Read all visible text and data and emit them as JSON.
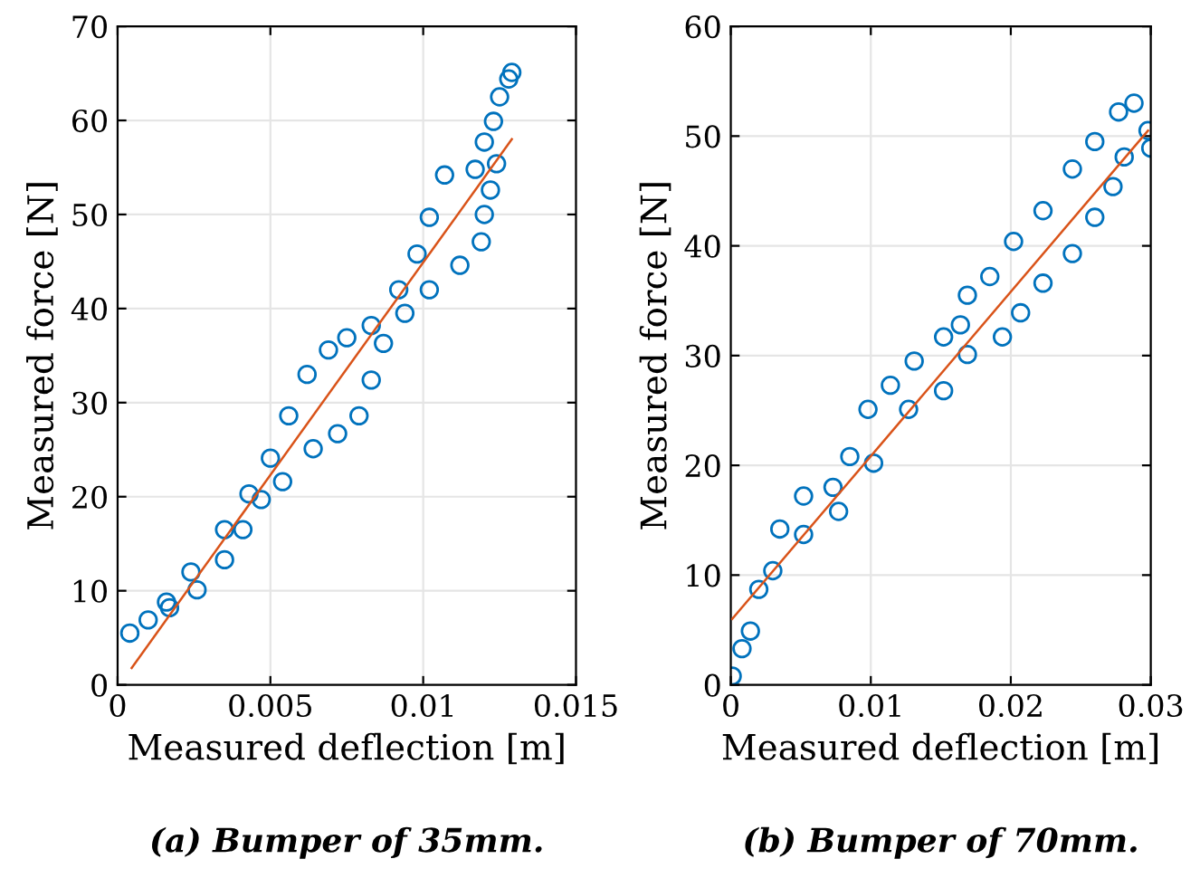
{
  "chart_data": [
    {
      "type": "scatter",
      "xlabel": "Measured deflection [m]",
      "ylabel": "Measured force [N]",
      "annotations": [
        "(a) Bumper of 35mm."
      ],
      "xlim": [
        0,
        0.015
      ],
      "ylim": [
        0,
        70
      ],
      "xticks": [
        0,
        0.005,
        0.01,
        0.015
      ],
      "yticks": [
        0,
        10,
        20,
        30,
        40,
        50,
        60,
        70
      ],
      "grid": true,
      "series": [
        {
          "color": "#0072bd",
          "marker": "circle",
          "x": [
            0.0004,
            0.001,
            0.0016,
            0.0024,
            0.0035,
            0.0043,
            0.005,
            0.0056,
            0.0062,
            0.0069,
            0.0075,
            0.0083,
            0.0092,
            0.0098,
            0.0102,
            0.0107,
            0.0017,
            0.0026,
            0.0035,
            0.0041,
            0.0047,
            0.0054,
            0.0064,
            0.0072,
            0.0079,
            0.0083,
            0.0087,
            0.0094,
            0.0102,
            0.0112,
            0.0119,
            0.012,
            0.0122,
            0.0124,
            0.0117,
            0.012,
            0.0123,
            0.0125,
            0.0128,
            0.0129
          ],
          "values": [
            5.5,
            6.9,
            8.8,
            12,
            16.5,
            20.3,
            24.1,
            28.6,
            33,
            35.6,
            36.9,
            38.2,
            42,
            45.8,
            49.7,
            54.2,
            8.2,
            10.1,
            13.3,
            16.5,
            19.7,
            21.6,
            25.1,
            26.7,
            28.6,
            32.4,
            36.3,
            39.5,
            42,
            44.6,
            47.1,
            50,
            52.6,
            55.4,
            54.8,
            57.7,
            59.9,
            62.5,
            64.4,
            65.1
          ]
        },
        {
          "type": "line",
          "color": "#d95319",
          "x": [
            0.00046,
            0.0129
          ],
          "values": [
            1.8,
            58
          ]
        }
      ]
    },
    {
      "type": "scatter",
      "xlabel": "Measured deflection [m]",
      "ylabel": "Measured force [N]",
      "annotations": [
        "(b) Bumper of 70mm."
      ],
      "xlim": [
        0,
        0.03
      ],
      "ylim": [
        0,
        60
      ],
      "xticks": [
        0,
        0.01,
        0.02,
        0.03
      ],
      "yticks": [
        0,
        10,
        20,
        30,
        40,
        50,
        60
      ],
      "grid": true,
      "series": [
        {
          "color": "#0072bd",
          "marker": "circle",
          "x": [
            0.0001,
            0.0008,
            0.002,
            0.0035,
            0.0052,
            0.0073,
            0.0085,
            0.0098,
            0.0114,
            0.0131,
            0.0152,
            0.0164,
            0.0169,
            0.0185,
            0.0202,
            0.0223,
            0.0244,
            0.026,
            0.0277,
            0.0288,
            0.0014,
            0.003,
            0.0052,
            0.0077,
            0.0102,
            0.0127,
            0.0152,
            0.0169,
            0.0194,
            0.0207,
            0.0223,
            0.0244,
            0.026,
            0.0273,
            0.0281,
            0.0298,
            0.03
          ],
          "values": [
            0.8,
            3.3,
            8.7,
            14.2,
            17.2,
            18,
            20.8,
            25.1,
            27.3,
            29.5,
            31.7,
            32.8,
            35.5,
            37.2,
            40.4,
            43.2,
            47,
            49.5,
            52.2,
            53,
            4.9,
            10.4,
            13.7,
            15.8,
            20.2,
            25.1,
            26.8,
            30.1,
            31.7,
            33.9,
            36.6,
            39.3,
            42.6,
            45.4,
            48.1,
            50.5,
            48.9
          ]
        },
        {
          "type": "line",
          "color": "#d95319",
          "x": [
            0.0001,
            0.0298
          ],
          "values": [
            6,
            50.5
          ]
        }
      ]
    }
  ]
}
